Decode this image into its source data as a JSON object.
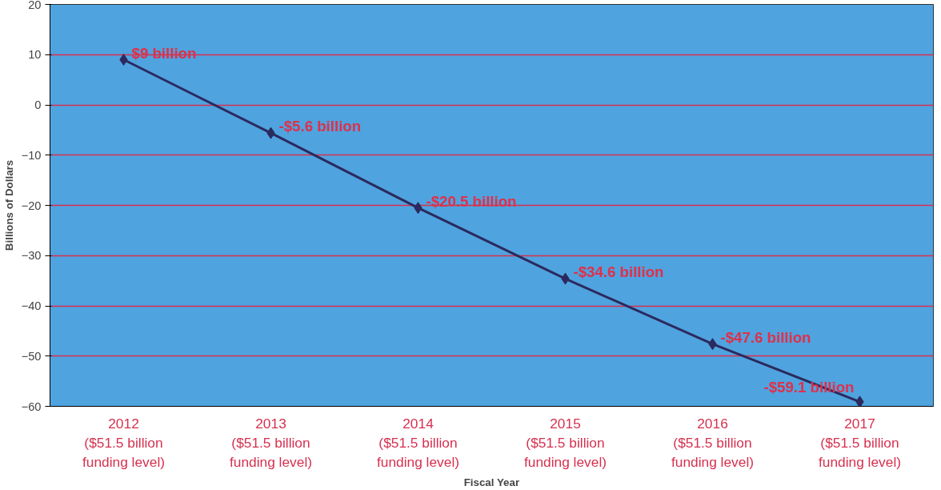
{
  "chart_data": {
    "type": "line",
    "xlabel": "Fiscal Year",
    "ylabel": "Billions of Dollars",
    "categories": [
      "2012\n($51.5 billion\nfunding level)",
      "2013\n($51.5 billion\nfunding level)",
      "2014\n($51.5 billion\nfunding level)",
      "2015\n($51.5 billion\nfunding level)",
      "2016\n($51.5 billion\nfunding level)",
      "2017\n($51.5 billion\nfunding level)"
    ],
    "series": [
      {
        "color": "#2b2a5e",
        "values": [
          9,
          -5.6,
          -20.5,
          -34.6,
          -47.6,
          -59.1
        ],
        "value_labels": [
          "$9 billion",
          "-$5.6 billion",
          "-$20.5 billion",
          "-$34.6 billion",
          "-$47.6 billion",
          "-$59.1 billion"
        ]
      }
    ],
    "ylim": [
      -60,
      20
    ],
    "yticks": [
      -60,
      -50,
      -40,
      -30,
      -20,
      -10,
      0,
      10,
      20
    ],
    "grid": "y",
    "marker": "diamond",
    "line_style": "solid"
  }
}
